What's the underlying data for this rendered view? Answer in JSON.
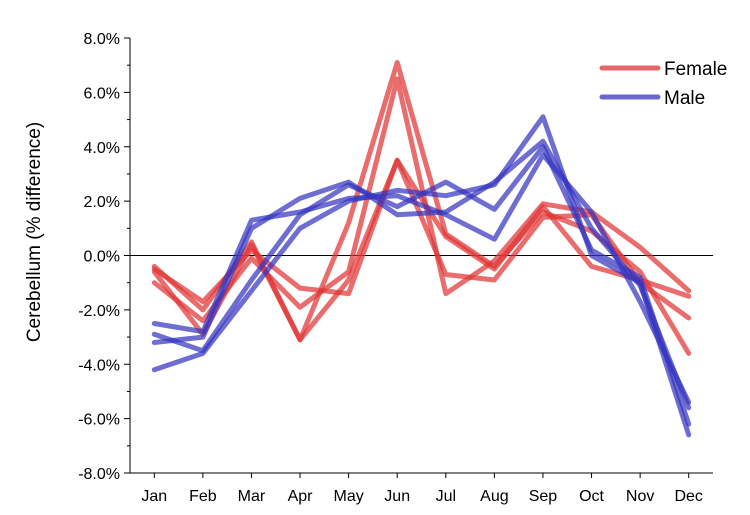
{
  "chart_data": {
    "type": "line",
    "title": "",
    "xlabel": "",
    "ylabel": "Cerebellum (% difference)",
    "categories": [
      "Jan",
      "Feb",
      "Mar",
      "Apr",
      "May",
      "Jun",
      "Jul",
      "Aug",
      "Sep",
      "Oct",
      "Nov",
      "Dec"
    ],
    "ylim": [
      -8,
      8
    ],
    "yticks": [
      8,
      6,
      4,
      2,
      0,
      -2,
      -4,
      -6,
      -8
    ],
    "ytick_labels": [
      "8.0%",
      "6.0%",
      "4.0%",
      "2.0%",
      "0.0%",
      "-2.0%",
      "-4.0%",
      "-6.0%",
      "-8.0%"
    ],
    "zero_line": true,
    "grid": false,
    "legend": {
      "position": "top-right",
      "entries": [
        {
          "label": "Female",
          "color": "#e03535"
        },
        {
          "label": "Male",
          "color": "#3535c0"
        }
      ]
    },
    "series": [
      {
        "group": "Female",
        "color": "#e03535",
        "values": [
          -0.5,
          -1.7,
          0.2,
          -1.2,
          -1.4,
          3.5,
          -0.7,
          -0.9,
          1.4,
          1.5,
          -1.0,
          -2.3
        ]
      },
      {
        "group": "Female",
        "color": "#e03535",
        "values": [
          -0.4,
          -2.0,
          0.5,
          -3.1,
          1.2,
          7.1,
          0.8,
          -0.4,
          1.6,
          0.9,
          -0.6,
          -3.6
        ]
      },
      {
        "group": "Female",
        "color": "#e03535",
        "values": [
          -1.0,
          -2.4,
          -0.1,
          -1.9,
          -0.6,
          6.5,
          -1.4,
          -0.2,
          1.9,
          1.6,
          0.3,
          -1.3
        ]
      },
      {
        "group": "Female",
        "color": "#e03535",
        "values": [
          -0.6,
          -2.9,
          0.4,
          -3.1,
          -0.9,
          3.5,
          0.7,
          -0.5,
          1.8,
          -0.4,
          -0.9,
          -1.5
        ]
      },
      {
        "group": "Male",
        "color": "#3535c0",
        "values": [
          -2.5,
          -2.8,
          1.3,
          1.6,
          2.1,
          2.2,
          1.5,
          0.6,
          3.7,
          1.6,
          -1.7,
          -5.4
        ]
      },
      {
        "group": "Male",
        "color": "#3535c0",
        "values": [
          -2.9,
          -3.5,
          -0.9,
          1.5,
          2.6,
          1.8,
          2.7,
          1.7,
          4.0,
          0.2,
          -0.8,
          -6.2
        ]
      },
      {
        "group": "Male",
        "color": "#3535c0",
        "values": [
          -4.2,
          -3.6,
          -1.3,
          1.0,
          2.0,
          2.4,
          2.2,
          2.6,
          5.1,
          0.0,
          -1.0,
          -6.6
        ]
      },
      {
        "group": "Male",
        "color": "#3535c0",
        "values": [
          -3.2,
          -3.0,
          1.0,
          2.1,
          2.7,
          1.5,
          1.6,
          2.7,
          4.2,
          1.0,
          -1.1,
          -5.6
        ]
      }
    ]
  }
}
